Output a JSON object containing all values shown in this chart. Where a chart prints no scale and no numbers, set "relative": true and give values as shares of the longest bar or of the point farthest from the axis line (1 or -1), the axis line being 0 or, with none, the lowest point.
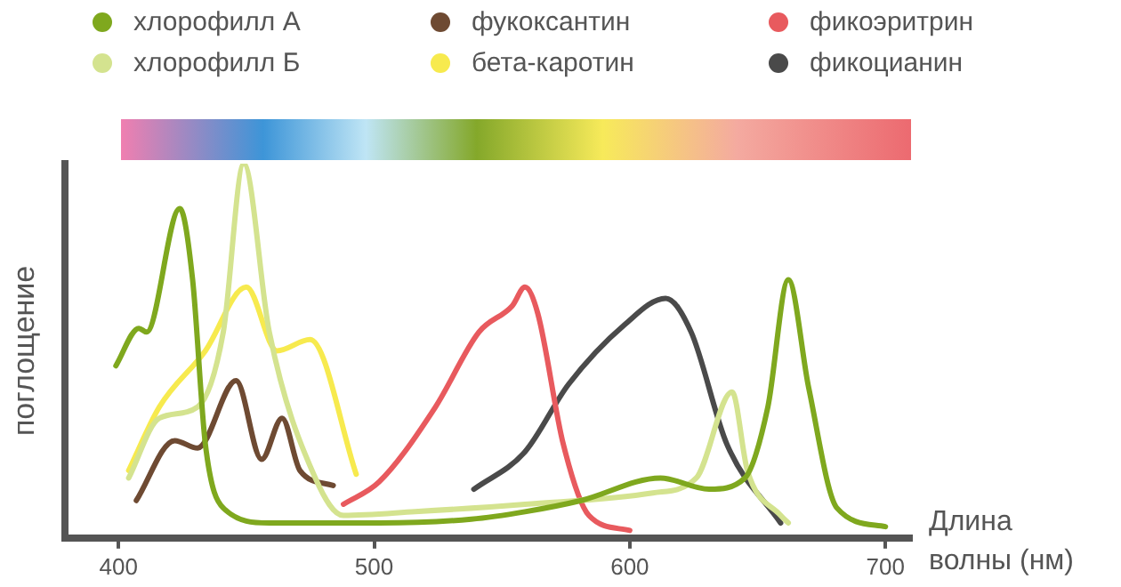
{
  "chart_data": {
    "type": "line",
    "xlabel": "Длина волны (нм)",
    "ylabel": "поглощение",
    "relative": true,
    "xlim": [
      379,
      710
    ],
    "xticks": [
      400,
      500,
      600,
      700
    ],
    "grid": false,
    "legend": "top",
    "marker": "none",
    "line_style": "solid",
    "series": [
      {
        "name": "хлорофилл А",
        "color": "#7fa81e",
        "x": [
          399,
          408,
          411,
          424,
          429,
          434,
          441,
          459,
          502,
          538,
          559,
          581,
          612,
          631,
          645,
          654,
          662,
          670,
          681,
          700
        ],
        "values": [
          0.46,
          0.56,
          0.55,
          0.88,
          0.69,
          0.25,
          0.08,
          0.04,
          0.04,
          0.05,
          0.07,
          0.1,
          0.16,
          0.13,
          0.16,
          0.35,
          0.69,
          0.4,
          0.08,
          0.03
        ]
      },
      {
        "name": "хлорофилл Б",
        "color": "#d4e38f",
        "x": [
          404,
          416,
          431,
          441,
          449,
          459,
          477,
          488,
          516,
          559,
          609,
          626,
          640,
          646,
          659,
          662
        ],
        "values": [
          0.16,
          0.32,
          0.35,
          0.55,
          1.0,
          0.55,
          0.16,
          0.06,
          0.07,
          0.09,
          0.12,
          0.16,
          0.39,
          0.18,
          0.06,
          0.04
        ]
      },
      {
        "name": "фукоксантин",
        "color": "#6e4a32",
        "x": [
          407,
          422,
          431,
          446,
          456,
          464,
          471,
          484
        ],
        "values": [
          0.1,
          0.26,
          0.24,
          0.42,
          0.21,
          0.32,
          0.18,
          0.14
        ]
      },
      {
        "name": "бета-каротин",
        "color": "#f7ea4e",
        "x": [
          404,
          416,
          434,
          450,
          462,
          475,
          493
        ],
        "values": [
          0.18,
          0.35,
          0.5,
          0.67,
          0.5,
          0.53,
          0.17
        ]
      },
      {
        "name": "фикоэритрин",
        "color": "#e85a5e",
        "x": [
          488,
          502,
          524,
          541,
          554,
          559,
          564,
          574,
          584,
          600
        ],
        "values": [
          0.09,
          0.15,
          0.35,
          0.55,
          0.62,
          0.67,
          0.6,
          0.25,
          0.06,
          0.02
        ]
      },
      {
        "name": "фикоцианин",
        "color": "#4a4a4a",
        "x": [
          539,
          559,
          576,
          598,
          614,
          624,
          638,
          659
        ],
        "values": [
          0.13,
          0.23,
          0.41,
          0.57,
          0.64,
          0.55,
          0.25,
          0.04
        ]
      }
    ]
  }
}
